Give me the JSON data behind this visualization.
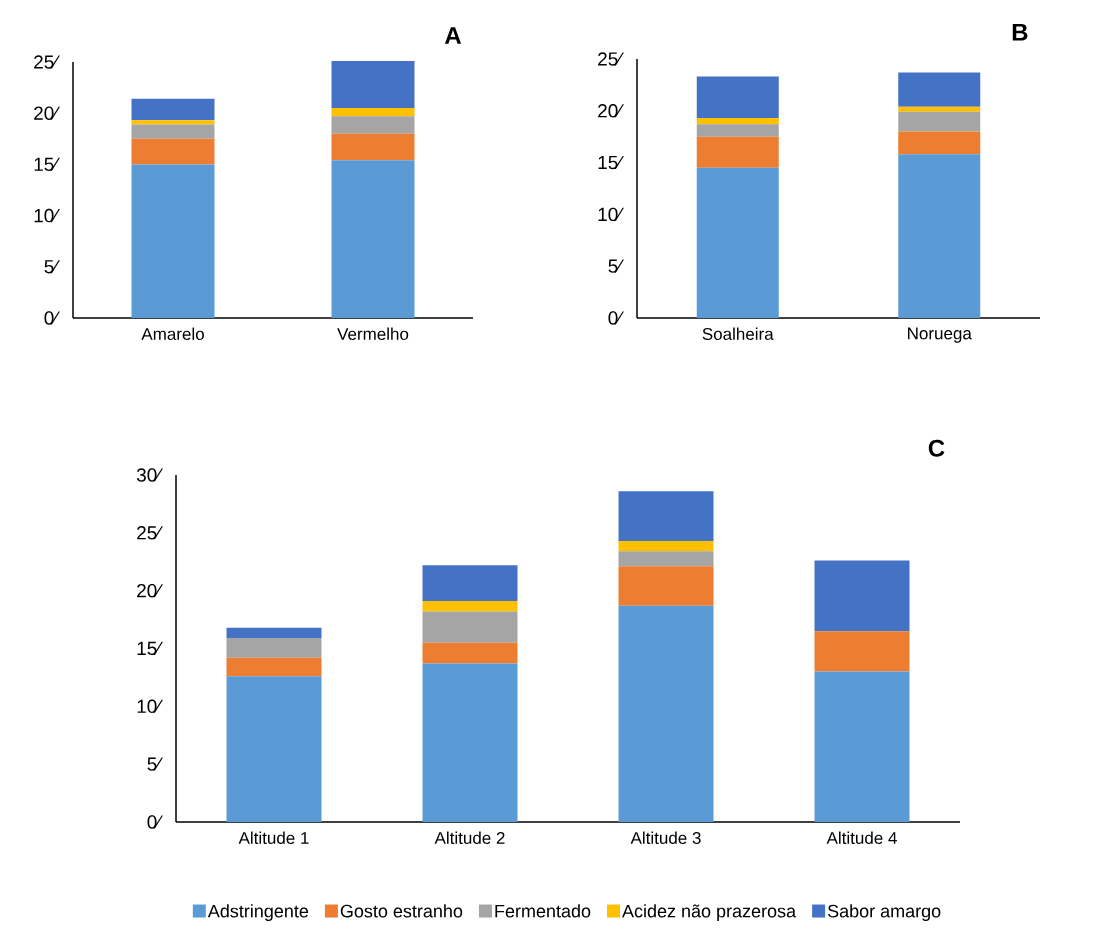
{
  "chart_data": [
    {
      "type": "bar",
      "stacked": true,
      "title": "A",
      "categories": [
        "Amarelo",
        "Vermelho"
      ],
      "series": [
        {
          "color": "#5b9bd5",
          "values": [
            15.0,
            15.4
          ]
        },
        {
          "color": "#ed7d31",
          "values": [
            2.5,
            2.6
          ]
        },
        {
          "color": "#a5a5a5",
          "values": [
            1.4,
            1.7
          ]
        },
        {
          "color": "#ffc000",
          "values": [
            0.4,
            0.8
          ]
        },
        {
          "color": "#4472c4",
          "values": [
            2.1,
            4.6
          ]
        }
      ],
      "ylim": [
        0,
        25
      ],
      "yticks": [
        {
          "value": 0,
          "label": "0⁄"
        },
        {
          "value": 5,
          "label": "5⁄"
        },
        {
          "value": 10,
          "label": "10⁄"
        },
        {
          "value": 15,
          "label": "15⁄"
        },
        {
          "value": 20,
          "label": "20⁄"
        },
        {
          "value": 25,
          "label": "25⁄"
        }
      ]
    },
    {
      "type": "bar",
      "stacked": true,
      "title": "B",
      "categories": [
        "Soalheira",
        "Noruega"
      ],
      "series": [
        {
          "color": "#5b9bd5",
          "values": [
            14.5,
            15.8
          ]
        },
        {
          "color": "#ed7d31",
          "values": [
            3.0,
            2.2
          ]
        },
        {
          "color": "#a5a5a5",
          "values": [
            1.2,
            1.9
          ]
        },
        {
          "color": "#ffc000",
          "values": [
            0.6,
            0.5
          ]
        },
        {
          "color": "#4472c4",
          "values": [
            4.0,
            3.3
          ]
        }
      ],
      "ylim": [
        0,
        25
      ],
      "yticks": [
        {
          "value": 0,
          "label": "0⁄"
        },
        {
          "value": 5,
          "label": "5⁄"
        },
        {
          "value": 10,
          "label": "10⁄"
        },
        {
          "value": 15,
          "label": "15⁄"
        },
        {
          "value": 20,
          "label": "20⁄"
        },
        {
          "value": 25,
          "label": "25⁄"
        }
      ]
    },
    {
      "type": "bar",
      "stacked": true,
      "title": "C",
      "categories": [
        "Altitude 1",
        "Altitude 2",
        "Altitude 3",
        "Altitude 4"
      ],
      "series": [
        {
          "name": "Adstringente",
          "color": "#5b9bd5",
          "values": [
            12.6,
            13.7,
            18.7,
            13.0
          ]
        },
        {
          "name": "Gosto estranho",
          "color": "#ed7d31",
          "values": [
            1.6,
            1.8,
            3.4,
            3.5
          ]
        },
        {
          "name": "Fermentado",
          "color": "#a5a5a5",
          "values": [
            1.7,
            2.7,
            1.3,
            0
          ]
        },
        {
          "name": "Acidez não prazerosa",
          "color": "#ffc000",
          "values": [
            0,
            0.9,
            0.9,
            0
          ]
        },
        {
          "name": "Sabor amargo",
          "color": "#4472c4",
          "values": [
            0.9,
            3.1,
            4.3,
            6.1
          ]
        }
      ],
      "ylim": [
        0,
        30
      ],
      "yticks": [
        {
          "value": 0,
          "label": "0⁄"
        },
        {
          "value": 5,
          "label": "5⁄"
        },
        {
          "value": 10,
          "label": "10⁄"
        },
        {
          "value": 15,
          "label": "15⁄"
        },
        {
          "value": 20,
          "label": "20⁄"
        },
        {
          "value": 25,
          "label": "25⁄"
        },
        {
          "value": 30,
          "label": "30⁄"
        }
      ],
      "legend": "bottom"
    }
  ]
}
